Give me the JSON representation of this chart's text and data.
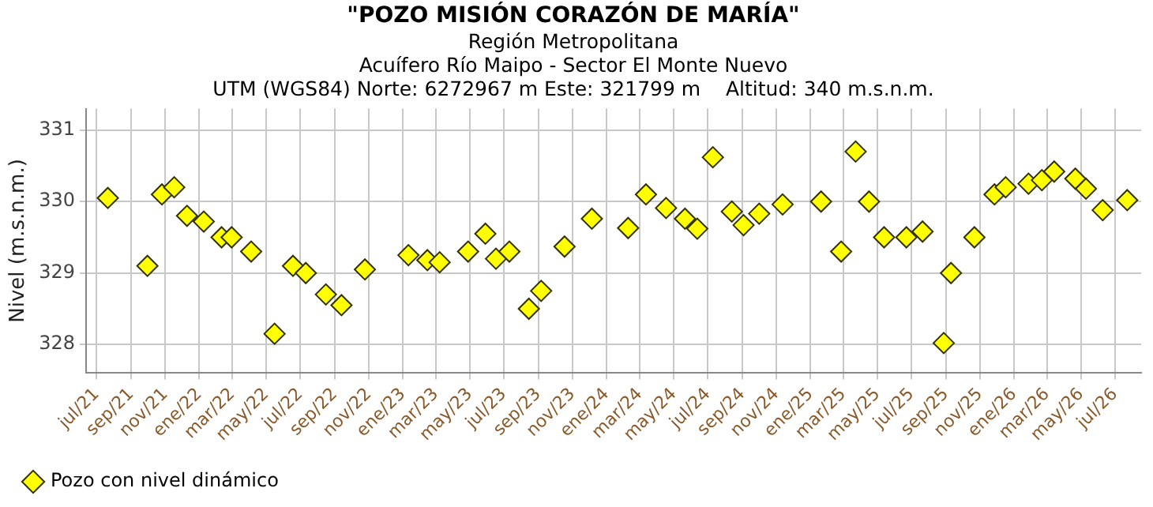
{
  "chart_data": {
    "type": "scatter",
    "title": "\"POZO MISIÓN CORAZÓN DE MARÍA\"",
    "subtitle": "Región Metropolitana\nAcuífero Río Maipo - Sector El Monte Nuevo\nUTM (WGS84) Norte: 6272967 m Este: 321799 m    Altitud: 340 m.s.n.m.",
    "ylabel": "Nivel (m.s.n.m.)",
    "x": [
      "2021-07-21",
      "2021-09-30",
      "2021-10-26",
      "2021-11-17",
      "2021-12-10",
      "2022-01-09",
      "2022-02-10",
      "2022-02-28",
      "2022-04-04",
      "2022-05-16",
      "2022-06-18",
      "2022-07-11",
      "2022-08-16",
      "2022-09-13",
      "2022-10-25",
      "2023-01-11",
      "2023-02-14",
      "2023-03-08",
      "2023-04-28",
      "2023-05-29",
      "2023-06-17",
      "2023-07-11",
      "2023-08-15",
      "2023-09-06",
      "2023-10-18",
      "2023-12-06",
      "2024-02-09",
      "2024-03-12",
      "2024-04-17",
      "2024-05-21",
      "2024-06-12",
      "2024-07-10",
      "2024-08-13",
      "2024-09-03",
      "2024-10-01",
      "2024-11-12",
      "2025-01-20",
      "2025-02-25",
      "2025-03-23",
      "2025-04-16",
      "2025-05-13",
      "2025-06-22",
      "2025-07-21",
      "2025-08-28",
      "2025-09-10",
      "2025-10-22",
      "2025-11-27",
      "2025-12-17",
      "2026-01-27",
      "2026-02-20",
      "2026-03-14",
      "2026-04-21",
      "2026-05-10",
      "2026-06-09",
      "2026-07-23"
    ],
    "series": [
      {
        "name": "Pozo con nivel dinámico",
        "color": "#ffff00",
        "values": [
          330.05,
          329.1,
          330.1,
          330.2,
          329.8,
          329.72,
          329.5,
          329.5,
          329.3,
          328.15,
          329.1,
          329.0,
          328.7,
          328.55,
          329.05,
          329.25,
          329.18,
          329.15,
          329.3,
          329.55,
          329.2,
          329.3,
          328.5,
          328.75,
          329.37,
          329.76,
          329.63,
          330.1,
          329.91,
          329.76,
          329.62,
          330.62,
          329.86,
          329.67,
          329.83,
          329.96,
          330.0,
          329.3,
          330.7,
          330.0,
          329.5,
          329.5,
          329.58,
          328.02,
          329.0,
          329.5,
          330.1,
          330.2,
          330.25,
          330.3,
          330.42,
          330.32,
          330.18,
          329.88,
          330.02
        ]
      }
    ],
    "xlim": [
      "2021-06-12",
      "2026-08-17"
    ],
    "xticks": [
      {
        "value": "2021-07",
        "label": "jul/21"
      },
      {
        "value": "2021-09",
        "label": "sep/21"
      },
      {
        "value": "2021-11",
        "label": "nov/21"
      },
      {
        "value": "2022-01",
        "label": "ene/22"
      },
      {
        "value": "2022-03",
        "label": "mar/22"
      },
      {
        "value": "2022-05",
        "label": "may/22"
      },
      {
        "value": "2022-07",
        "label": "jul/22"
      },
      {
        "value": "2022-09",
        "label": "sep/22"
      },
      {
        "value": "2022-11",
        "label": "nov/22"
      },
      {
        "value": "2023-01",
        "label": "ene/23"
      },
      {
        "value": "2023-03",
        "label": "mar/23"
      },
      {
        "value": "2023-05",
        "label": "may/23"
      },
      {
        "value": "2023-07",
        "label": "jul/23"
      },
      {
        "value": "2023-09",
        "label": "sep/23"
      },
      {
        "value": "2023-11",
        "label": "nov/23"
      },
      {
        "value": "2024-01",
        "label": "ene/24"
      },
      {
        "value": "2024-03",
        "label": "mar/24"
      },
      {
        "value": "2024-05",
        "label": "may/24"
      },
      {
        "value": "2024-07",
        "label": "jul/24"
      },
      {
        "value": "2024-09",
        "label": "sep/24"
      },
      {
        "value": "2024-11",
        "label": "nov/24"
      },
      {
        "value": "2025-01",
        "label": "ene/25"
      },
      {
        "value": "2025-03",
        "label": "mar/25"
      },
      {
        "value": "2025-05",
        "label": "may/25"
      },
      {
        "value": "2025-07",
        "label": "jul/25"
      },
      {
        "value": "2025-09",
        "label": "sep/25"
      },
      {
        "value": "2025-11",
        "label": "nov/25"
      },
      {
        "value": "2026-01",
        "label": "ene/26"
      },
      {
        "value": "2026-03",
        "label": "mar/26"
      },
      {
        "value": "2026-05",
        "label": "may/26"
      },
      {
        "value": "2026-07",
        "label": "jul/26"
      }
    ],
    "ylim": [
      327.6,
      331.3
    ],
    "yticks": [
      328,
      329,
      330,
      331
    ],
    "grid": true,
    "legend": "bottom left",
    "marker": "diamond"
  }
}
